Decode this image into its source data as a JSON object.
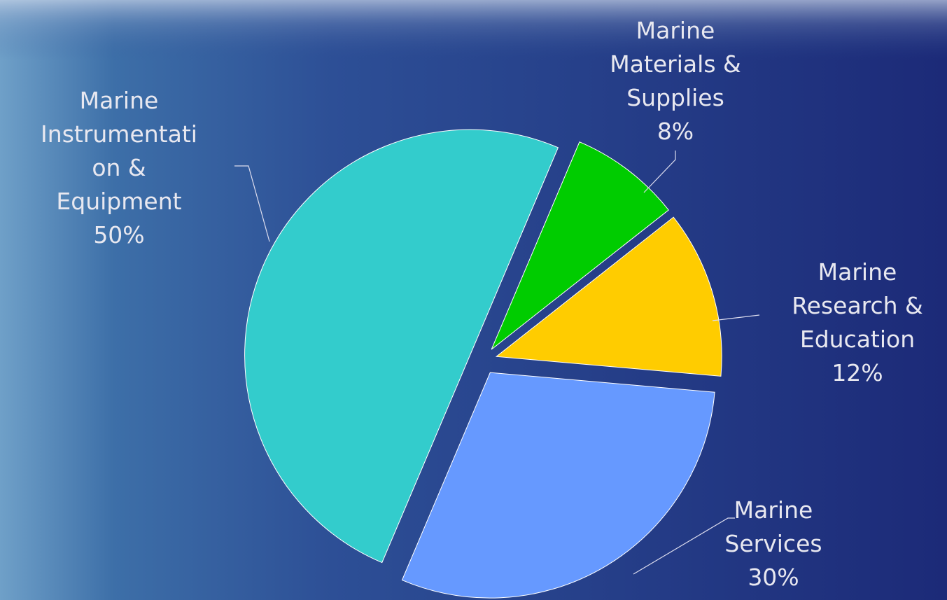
{
  "chart_data": {
    "type": "pie",
    "categories": [
      "Marine Materials & Supplies",
      "Marine Research & Education",
      "Marine Services",
      "Marine Instrumentation & Equipment"
    ],
    "values": [
      8,
      12,
      30,
      50
    ],
    "value_labels": [
      "8%",
      "12%",
      "30%",
      "50%"
    ],
    "colors": [
      "#00cc00",
      "#ffcc00",
      "#6699ff",
      "#33cccc"
    ]
  }
}
